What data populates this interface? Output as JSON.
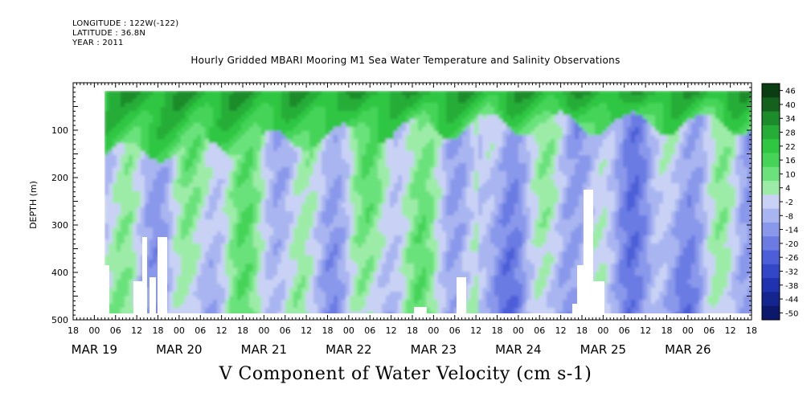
{
  "header": {
    "longitude": "LONGITUDE : 122W(-122)",
    "latitude": "LATITUDE : 36.8N",
    "year": "YEAR : 2011"
  },
  "chart_data": {
    "type": "heatmap",
    "title": "Hourly Gridded MBARI Mooring M1 Sea Water Temperature and Salinity Observations",
    "xlabel": "V Component of Water Velocity (cm s-1)",
    "ylabel": "DEPTH (m)",
    "y_ticks": [
      100,
      200,
      300,
      400,
      500
    ],
    "ylim": [
      500,
      0
    ],
    "x_hour_ticks": [
      "18",
      "00",
      "06",
      "12",
      "18",
      "00",
      "06",
      "12",
      "18",
      "00",
      "06",
      "12",
      "18",
      "00",
      "06",
      "12",
      "18",
      "00",
      "06",
      "12",
      "18",
      "00",
      "06",
      "12",
      "18",
      "00",
      "06",
      "12",
      "18",
      "00",
      "06",
      "12",
      "18"
    ],
    "x_date_labels": [
      "MAR 19",
      "MAR 20",
      "MAR 21",
      "MAR 22",
      "MAR 23",
      "MAR 24",
      "MAR 25",
      "MAR 26"
    ],
    "xlim": [
      "2011-03-18T18:00",
      "2011-03-26T18:00"
    ],
    "colorbar_levels": [
      46,
      40,
      34,
      28,
      22,
      16,
      10,
      4,
      -2,
      -8,
      -14,
      -20,
      -26,
      -32,
      -38,
      -44,
      -50
    ],
    "colorbar_colors": [
      "#0b3d12",
      "#13611d",
      "#1c8b2a",
      "#25ad37",
      "#2fc642",
      "#45d458",
      "#6be27c",
      "#9ceca7",
      "#c9d2f5",
      "#a9b5f0",
      "#8a98eb",
      "#6b7be3",
      "#4d5fd8",
      "#3246c8",
      "#1f33b0",
      "#142590",
      "#0c186b"
    ],
    "description_fields": {
      "near_surface": "positive (northward) flow 15-40 cm/s",
      "deep": "alternating bands -5 to -25 cm/s"
    }
  }
}
